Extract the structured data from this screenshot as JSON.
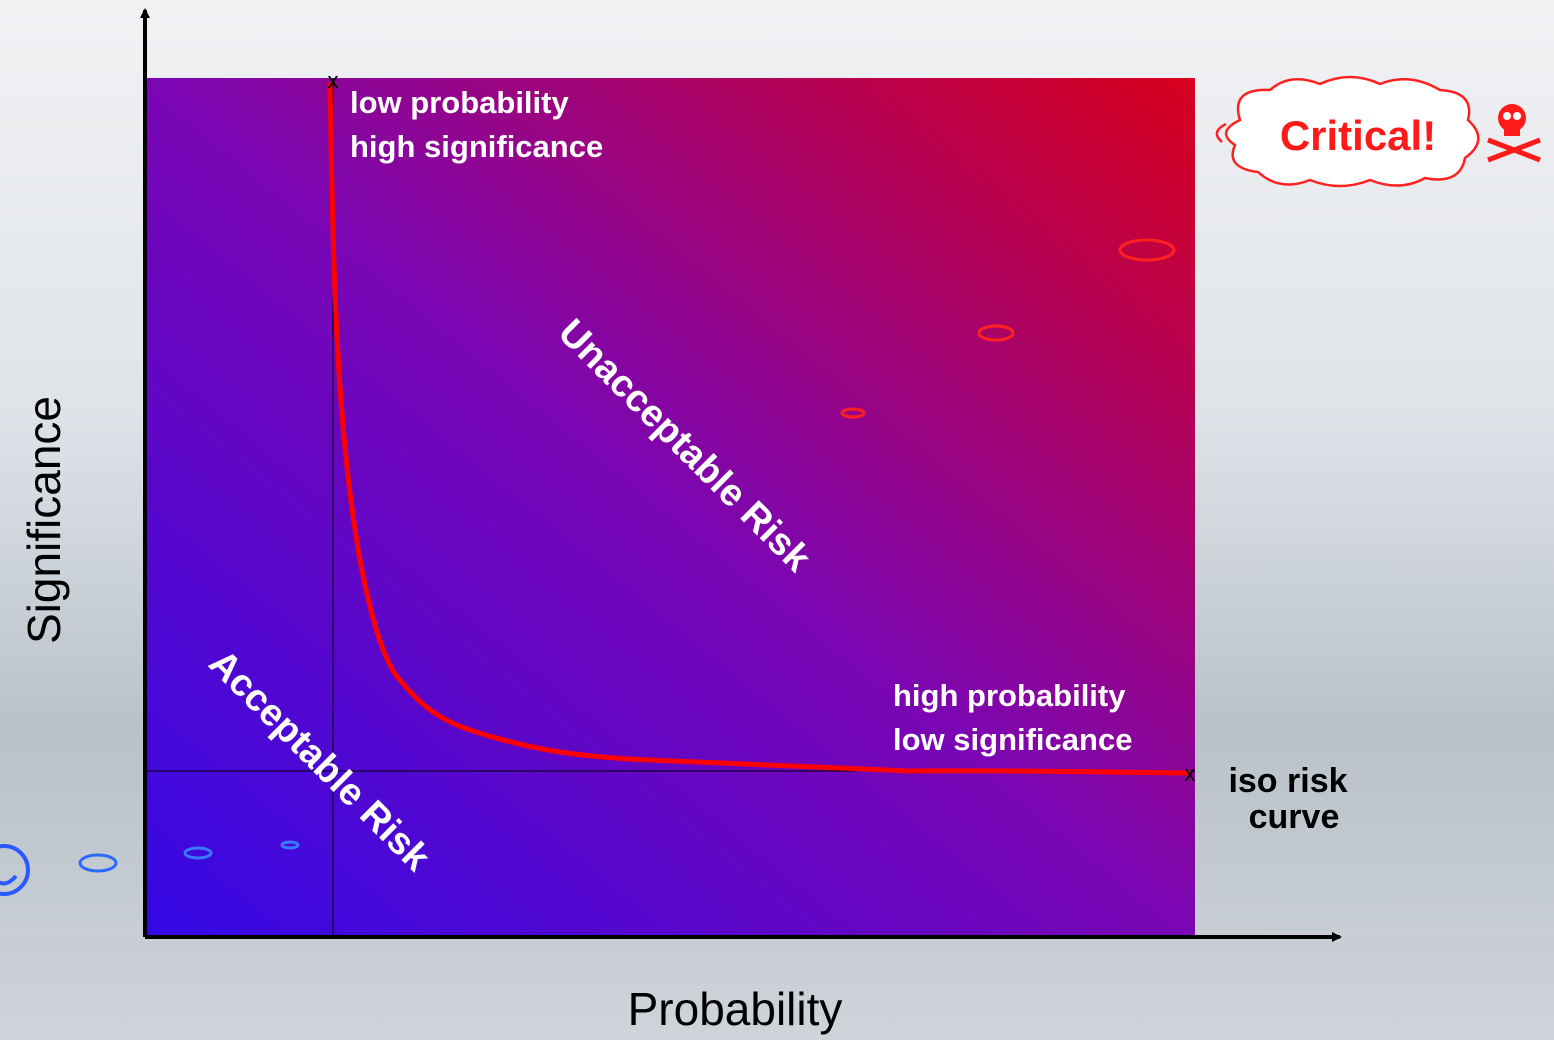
{
  "axes": {
    "y_label": "Significance",
    "x_label": "Probability"
  },
  "regions": {
    "unacceptable": "Unacceptable Risk",
    "acceptable": "Acceptable Risk"
  },
  "annotations": {
    "top_left": [
      "low probability",
      "high significance"
    ],
    "bottom_right": [
      "high probability",
      "low significance"
    ],
    "curve": [
      "iso risk",
      "curve"
    ]
  },
  "badge": "Critical!"
}
